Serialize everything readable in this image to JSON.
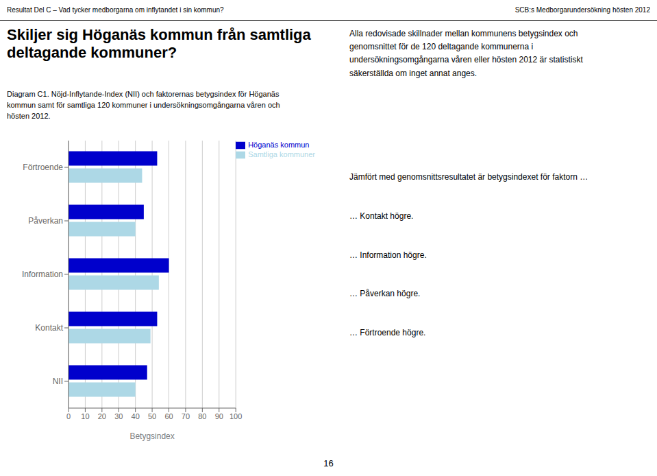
{
  "chart_data": {
    "type": "bar",
    "orientation": "horizontal",
    "title": "Skiljer sig Höganäs kommun från samtliga\ndeltagande kommuner?",
    "subtitle": "Diagram C1. Nöjd-Inflytande-Index (NII) och faktorernas betygsindex för Höganäs\nkommun samt för samtliga 120 kommuner i undersökningsomgångarna våren och\nhösten 2012.",
    "xlabel": "Betygsindex",
    "categories": [
      "NII",
      "Kontakt",
      "Information",
      "Påverkan",
      "Förtroende"
    ],
    "series": [
      {
        "name": "Höganäs kommun",
        "color": "#0000CC",
        "values": [
          47,
          53,
          60,
          45,
          53
        ]
      },
      {
        "name": "Samtliga kommuner",
        "color": "#ADD8E6",
        "values": [
          40,
          49,
          54,
          40,
          44
        ]
      }
    ],
    "xlim": [
      0,
      100
    ],
    "xticks": [
      0,
      10,
      20,
      30,
      40,
      50,
      60,
      70,
      80,
      90,
      100
    ],
    "grid": true,
    "legend": "upper right",
    "annotations": [
      "Resultat Del C – Vad tycker medborgarna om inflytandet i sin kommun?",
      "SCB:s Medborgarundersökning hösten 2012",
      "Alla redovisade skillnader mellan kommunens betygsindex och",
      "genomsnittet för de 120 deltagande kommunerna i",
      "undersökningsomgångarna våren eller hösten 2012 är statistiskt",
      "säkerställda om inget annat anges.",
      "Jämfört med genomsnittsresultatet är betygsindexet för faktorn …",
      "… Kontakt högre.",
      "… Information högre.",
      "… Påverkan högre.",
      "… Förtroende högre.",
      "16"
    ]
  }
}
